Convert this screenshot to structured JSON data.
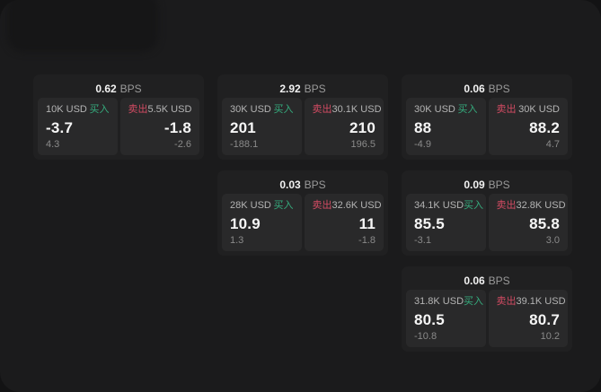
{
  "app": {
    "unit_label": "BPS"
  },
  "labels": {
    "buy": "买入",
    "sell": "卖出"
  },
  "colors": {
    "background": "#131314",
    "surface": "#1b1b1c",
    "corner_tile": "#161617",
    "card": "#202021",
    "panel": "#29292a",
    "buy_green": "#35ab7d",
    "sell_red": "#d34b63"
  },
  "cards": [
    {
      "grid": {
        "row": 1,
        "col": 1
      },
      "bps_value": "0.62",
      "buy": {
        "amount": "10K USD",
        "price": "-3.7",
        "change": "4.3"
      },
      "sell": {
        "amount": "5.5K USD",
        "price": "-1.8",
        "change": "-2.6"
      }
    },
    {
      "grid": {
        "row": 1,
        "col": 2
      },
      "bps_value": "2.92",
      "buy": {
        "amount": "30K USD",
        "price": "201",
        "change": "-188.1"
      },
      "sell": {
        "amount": "30.1K USD",
        "price": "210",
        "change": "196.5"
      }
    },
    {
      "grid": {
        "row": 1,
        "col": 3
      },
      "bps_value": "0.06",
      "buy": {
        "amount": "30K USD",
        "price": "88",
        "change": "-4.9"
      },
      "sell": {
        "amount": "30K USD",
        "price": "88.2",
        "change": "4.7"
      }
    },
    {
      "grid": {
        "row": 2,
        "col": 2
      },
      "bps_value": "0.03",
      "buy": {
        "amount": "28K USD",
        "price": "10.9",
        "change": "1.3"
      },
      "sell": {
        "amount": "32.6K USD",
        "price": "11",
        "change": "-1.8"
      }
    },
    {
      "grid": {
        "row": 2,
        "col": 3
      },
      "bps_value": "0.09",
      "buy": {
        "amount": "34.1K USD",
        "price": "85.5",
        "change": "-3.1"
      },
      "sell": {
        "amount": "32.8K USD",
        "price": "85.8",
        "change": "3.0"
      }
    },
    {
      "grid": {
        "row": 3,
        "col": 3
      },
      "bps_value": "0.06",
      "buy": {
        "amount": "31.8K USD",
        "price": "80.5",
        "change": "-10.8"
      },
      "sell": {
        "amount": "39.1K USD",
        "price": "80.7",
        "change": "10.2"
      }
    }
  ]
}
